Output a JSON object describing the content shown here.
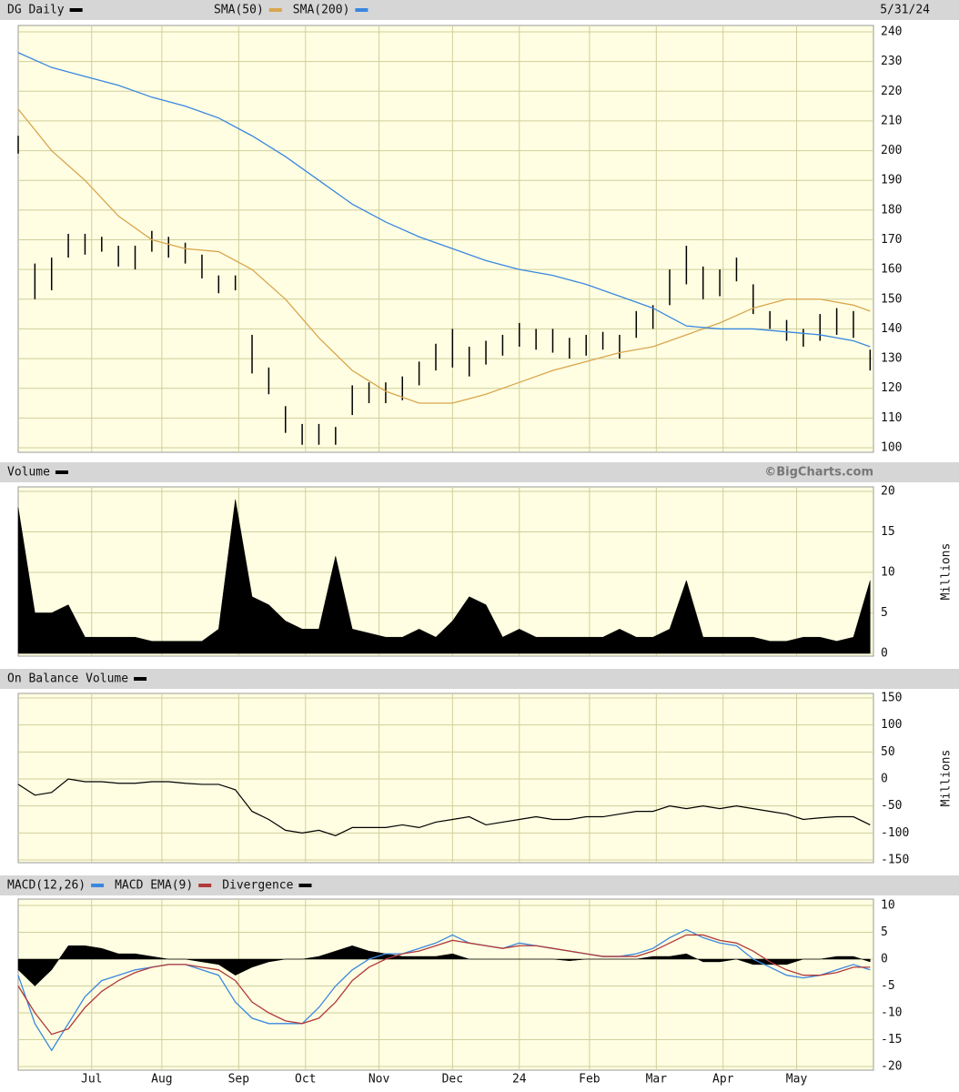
{
  "chart_data": [
    {
      "type": "ohlc",
      "title": "DG Daily",
      "date": "5/31/24",
      "color": "#000000",
      "x": [
        0,
        5,
        10,
        15,
        20,
        25,
        30,
        35,
        40,
        45,
        50,
        55,
        60,
        65,
        70,
        75,
        80,
        85,
        90,
        95,
        100,
        105,
        110,
        115,
        120,
        125,
        130,
        135,
        140,
        145,
        150,
        155,
        160,
        165,
        170,
        175,
        180,
        185,
        190,
        195,
        200,
        205,
        210,
        215,
        220,
        225,
        230,
        235,
        240,
        245,
        250,
        255
      ],
      "low": [
        199,
        150,
        153,
        164,
        165,
        166,
        161,
        160,
        166,
        164,
        162,
        157,
        152,
        153,
        125,
        118,
        105,
        101,
        101,
        101,
        111,
        115,
        115,
        116,
        121,
        126,
        127,
        124,
        128,
        131,
        134,
        133,
        132,
        130,
        131,
        133,
        130,
        137,
        140,
        148,
        155,
        150,
        151,
        156,
        145,
        140,
        136,
        134,
        136,
        138,
        137,
        126
      ],
      "high": [
        205,
        162,
        164,
        172,
        172,
        171,
        168,
        168,
        173,
        171,
        169,
        165,
        158,
        158,
        138,
        127,
        114,
        108,
        108,
        107,
        121,
        122,
        122,
        124,
        129,
        135,
        140,
        134,
        136,
        138,
        142,
        140,
        140,
        137,
        138,
        139,
        138,
        146,
        148,
        160,
        168,
        161,
        160,
        164,
        155,
        146,
        143,
        140,
        145,
        147,
        146,
        133
      ],
      "ylim": [
        100,
        240
      ],
      "yticks": [
        100,
        110,
        120,
        130,
        140,
        150,
        160,
        170,
        180,
        190,
        200,
        210,
        220,
        230,
        240
      ],
      "overlays": [
        {
          "name": "SMA(50)",
          "color": "#d9a64e",
          "x": [
            0,
            10,
            20,
            30,
            40,
            50,
            60,
            70,
            80,
            90,
            100,
            110,
            120,
            130,
            140,
            150,
            160,
            170,
            180,
            190,
            200,
            210,
            220,
            230,
            240,
            250,
            255
          ],
          "values": [
            214,
            200,
            190,
            178,
            170,
            167,
            166,
            160,
            150,
            137,
            126,
            119,
            115,
            115,
            118,
            122,
            126,
            129,
            132,
            134,
            138,
            142,
            147,
            150,
            150,
            148,
            146
          ]
        },
        {
          "name": "SMA(200)",
          "color": "#3a87e0",
          "x": [
            0,
            10,
            20,
            30,
            40,
            50,
            60,
            70,
            80,
            90,
            100,
            110,
            120,
            130,
            140,
            150,
            160,
            170,
            180,
            190,
            200,
            210,
            220,
            230,
            240,
            250,
            255
          ],
          "values": [
            233,
            228,
            225,
            222,
            218,
            215,
            211,
            205,
            198,
            190,
            182,
            176,
            171,
            167,
            163,
            160,
            158,
            155,
            151,
            147,
            141,
            140,
            140,
            139,
            138,
            136,
            134
          ]
        }
      ]
    },
    {
      "type": "area",
      "title": "Volume",
      "color": "#000000",
      "source": "©BigCharts.com",
      "y_label": "Millions",
      "x": [
        0,
        5,
        10,
        15,
        20,
        25,
        30,
        35,
        40,
        45,
        50,
        55,
        60,
        65,
        70,
        75,
        80,
        85,
        90,
        95,
        100,
        105,
        110,
        115,
        120,
        125,
        130,
        135,
        140,
        145,
        150,
        155,
        160,
        165,
        170,
        175,
        180,
        185,
        190,
        195,
        200,
        205,
        210,
        215,
        220,
        225,
        230,
        235,
        240,
        245,
        250,
        255
      ],
      "values": [
        18,
        5,
        5,
        6,
        2,
        2,
        2,
        2,
        1.5,
        1.5,
        1.5,
        1.5,
        3,
        19,
        7,
        6,
        4,
        3,
        3,
        12,
        3,
        2.5,
        2,
        2,
        3,
        2,
        4,
        7,
        6,
        2,
        3,
        2,
        2,
        2,
        2,
        2,
        3,
        2,
        2,
        3,
        9,
        2,
        2,
        2,
        2,
        1.5,
        1.5,
        2,
        2,
        1.5,
        2,
        9
      ],
      "ylim": [
        0,
        20
      ],
      "yticks": [
        0,
        5,
        10,
        15,
        20
      ]
    },
    {
      "type": "line",
      "title": "On Balance Volume",
      "color": "#000000",
      "y_label": "Millions",
      "x": [
        0,
        5,
        10,
        15,
        20,
        25,
        30,
        35,
        40,
        45,
        50,
        55,
        60,
        65,
        70,
        75,
        80,
        85,
        90,
        95,
        100,
        105,
        110,
        115,
        120,
        125,
        130,
        135,
        140,
        145,
        150,
        155,
        160,
        165,
        170,
        175,
        180,
        185,
        190,
        195,
        200,
        205,
        210,
        215,
        220,
        225,
        230,
        235,
        240,
        245,
        250,
        255
      ],
      "values": [
        -10,
        -30,
        -25,
        0,
        -5,
        -5,
        -8,
        -8,
        -5,
        -5,
        -8,
        -10,
        -10,
        -20,
        -60,
        -75,
        -95,
        -100,
        -95,
        -105,
        -90,
        -90,
        -90,
        -85,
        -90,
        -80,
        -75,
        -70,
        -85,
        -80,
        -75,
        -70,
        -75,
        -75,
        -70,
        -70,
        -65,
        -60,
        -60,
        -50,
        -55,
        -50,
        -55,
        -50,
        -55,
        -60,
        -65,
        -75,
        -72,
        -70,
        -70,
        -85
      ],
      "ylim": [
        -150,
        150
      ],
      "yticks": [
        -150,
        -100,
        -50,
        0,
        50,
        100,
        150
      ]
    },
    {
      "type": "line",
      "x": [
        0,
        5,
        10,
        15,
        20,
        25,
        30,
        35,
        40,
        45,
        50,
        55,
        60,
        65,
        70,
        75,
        80,
        85,
        90,
        95,
        100,
        105,
        110,
        115,
        120,
        125,
        130,
        135,
        140,
        145,
        150,
        155,
        160,
        165,
        170,
        175,
        180,
        185,
        190,
        195,
        200,
        205,
        210,
        215,
        220,
        225,
        230,
        235,
        240,
        245,
        250,
        255
      ],
      "series": [
        {
          "name": "MACD(12,26)",
          "color": "#3a87e0",
          "values": [
            -3,
            -12,
            -17,
            -12,
            -7,
            -4,
            -3,
            -2,
            -1.5,
            -1,
            -1,
            -2,
            -3,
            -8,
            -11,
            -12,
            -12,
            -12,
            -9,
            -5,
            -2,
            0,
            1,
            1,
            2,
            3,
            4.5,
            3,
            2.5,
            2,
            3,
            2.5,
            2,
            1.5,
            1,
            0.5,
            0.5,
            1,
            2,
            4,
            5.5,
            4,
            3,
            2.5,
            0,
            -1.5,
            -3,
            -3.5,
            -3,
            -2,
            -1,
            -2
          ]
        },
        {
          "name": "MACD EMA(9)",
          "color": "#b03a3a",
          "values": [
            -5,
            -10,
            -14,
            -13,
            -9,
            -6,
            -4,
            -2.5,
            -1.5,
            -1,
            -1,
            -1.5,
            -2,
            -4,
            -8,
            -10,
            -11.5,
            -12,
            -11,
            -8,
            -4,
            -1.5,
            0,
            1,
            1.5,
            2.5,
            3.5,
            3,
            2.5,
            2,
            2.5,
            2.5,
            2,
            1.5,
            1,
            0.5,
            0.5,
            0.5,
            1.5,
            3,
            4.5,
            4.5,
            3.5,
            3,
            1.5,
            -0.5,
            -2,
            -3,
            -3,
            -2.5,
            -1.5,
            -1.5
          ]
        },
        {
          "name": "Divergence",
          "color": "#000000",
          "style": "area",
          "values": [
            -2,
            -5,
            -2,
            2.5,
            2.5,
            2,
            1,
            1,
            0.5,
            0,
            0,
            -0.5,
            -1,
            -3,
            -1.5,
            -0.5,
            0,
            0,
            0.5,
            1.5,
            2.5,
            1.5,
            1,
            0.5,
            0.5,
            0.5,
            1,
            0,
            0,
            0,
            0,
            0,
            0,
            -0.3,
            0,
            0,
            0,
            0,
            0.5,
            0.5,
            1,
            -0.5,
            -0.5,
            0,
            -1,
            -1,
            -1,
            0,
            0,
            0.5,
            0.5,
            -0.5
          ]
        }
      ],
      "ylim": [
        -20,
        10
      ],
      "yticks": [
        -20,
        -15,
        -10,
        -5,
        0,
        5,
        10
      ],
      "xlim": [
        0,
        256
      ],
      "xticks": [
        {
          "value": 22,
          "label": "Jul"
        },
        {
          "value": 43,
          "label": "Aug"
        },
        {
          "value": 66,
          "label": "Sep"
        },
        {
          "value": 86,
          "label": "Oct"
        },
        {
          "value": 108,
          "label": "Nov"
        },
        {
          "value": 130,
          "label": "Dec"
        },
        {
          "value": 150,
          "label": "24"
        },
        {
          "value": 171,
          "label": "Feb"
        },
        {
          "value": 191,
          "label": "Mar"
        },
        {
          "value": 211,
          "label": "Apr"
        },
        {
          "value": 233,
          "label": "May"
        }
      ]
    }
  ]
}
